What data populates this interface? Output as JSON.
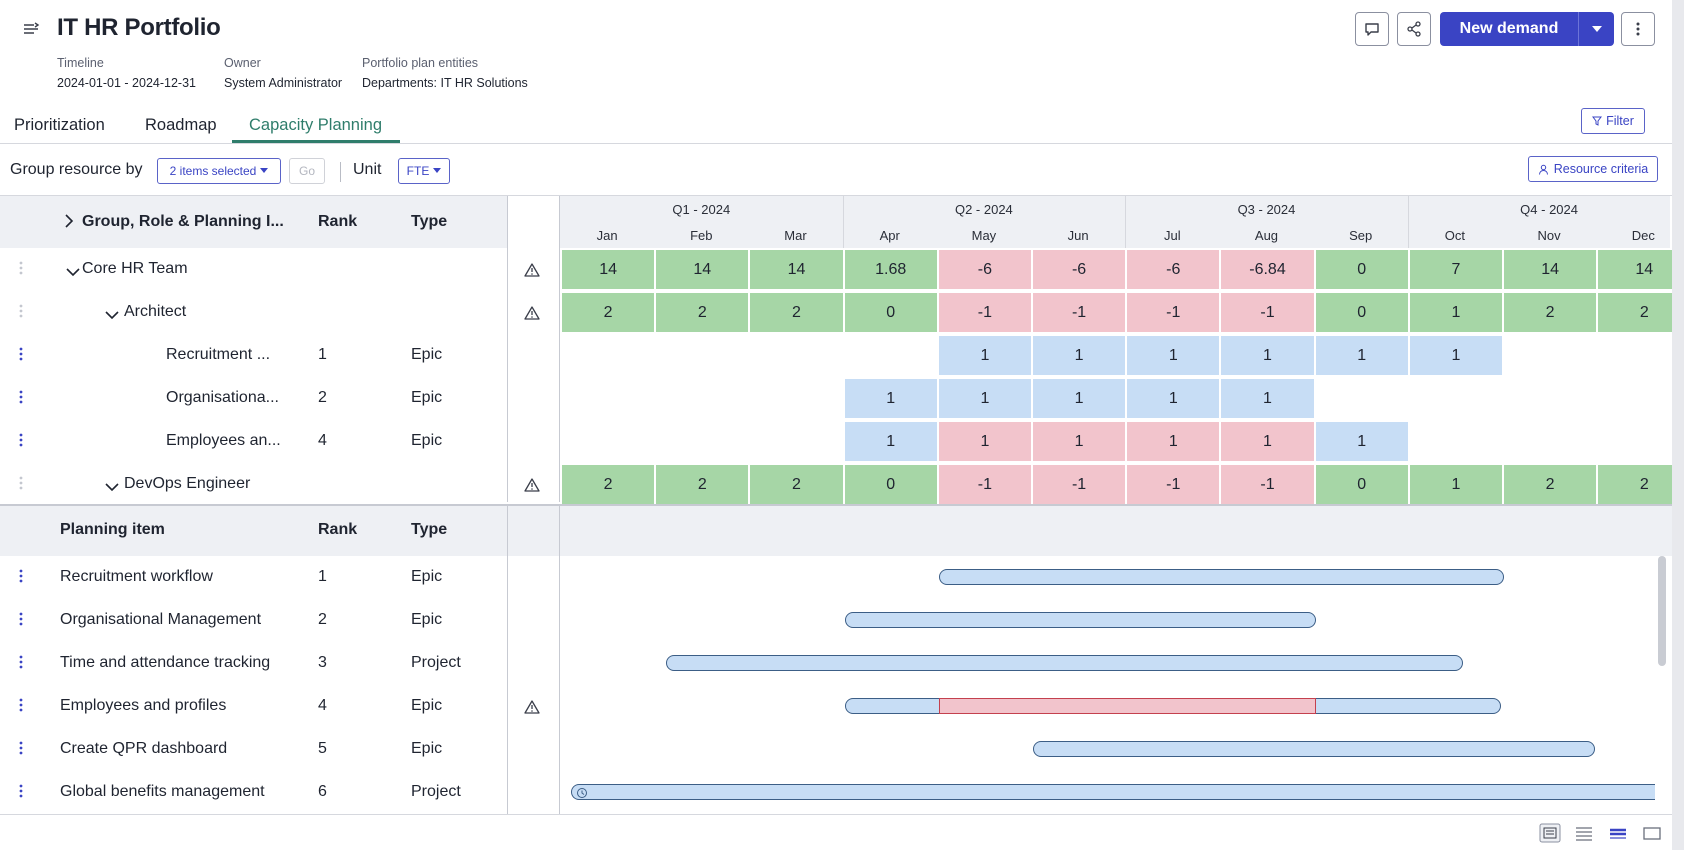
{
  "header": {
    "title": "IT HR Portfolio",
    "meta": [
      {
        "key": "Timeline",
        "value": "2024-01-01 - 2024-12-31"
      },
      {
        "key": "Owner",
        "value": "System Administrator"
      },
      {
        "key": "Portfolio plan entities",
        "value": "Departments: IT HR Solutions"
      }
    ],
    "new_demand_label": "New demand"
  },
  "tabs": [
    {
      "label": "Prioritization",
      "active": false
    },
    {
      "label": "Roadmap",
      "active": false
    },
    {
      "label": "Capacity Planning",
      "active": true
    }
  ],
  "filter_label": "Filter",
  "toolbar": {
    "group_label": "Group resource by",
    "group_value": "2 items selected",
    "go_label": "Go",
    "unit_label": "Unit",
    "unit_value": "FTE",
    "resource_criteria_label": "Resource criteria"
  },
  "capacity_grid": {
    "headers": {
      "group": "Group, Role & Planning I...",
      "rank": "Rank",
      "type": "Type"
    },
    "quarters": [
      "Q1 - 2024",
      "Q2 - 2024",
      "Q3 - 2024",
      "Q4 - 2024"
    ],
    "months": [
      "Jan",
      "Feb",
      "Mar",
      "Apr",
      "May",
      "Jun",
      "Jul",
      "Aug",
      "Sep",
      "Oct",
      "Nov",
      "Dec"
    ],
    "rows": [
      {
        "label": "Core HR Team",
        "rank": "",
        "type": "",
        "warning": true,
        "values": [
          "14",
          "14",
          "14",
          "1.68",
          "-6",
          "-6",
          "-6",
          "-6.84",
          "0",
          "7",
          "14",
          "14"
        ],
        "status": [
          "g",
          "g",
          "g",
          "g",
          "r",
          "r",
          "r",
          "r",
          "g",
          "g",
          "g",
          "g"
        ]
      },
      {
        "label": "Architect",
        "rank": "",
        "type": "",
        "warning": true,
        "values": [
          "2",
          "2",
          "2",
          "0",
          "-1",
          "-1",
          "-1",
          "-1",
          "0",
          "1",
          "2",
          "2"
        ],
        "status": [
          "g",
          "g",
          "g",
          "g",
          "r",
          "r",
          "r",
          "r",
          "g",
          "g",
          "g",
          "g"
        ]
      },
      {
        "label": "Recruitment ...",
        "rank": "1",
        "type": "Epic",
        "warning": false,
        "values": [
          "",
          "",
          "",
          "",
          "1",
          "1",
          "1",
          "1",
          "1",
          "1",
          "",
          ""
        ],
        "status": [
          "",
          "",
          "",
          "",
          "b",
          "b",
          "b",
          "b",
          "b",
          "b",
          "",
          ""
        ]
      },
      {
        "label": "Organisationa...",
        "rank": "2",
        "type": "Epic",
        "warning": false,
        "values": [
          "",
          "",
          "",
          "1",
          "1",
          "1",
          "1",
          "1",
          "",
          "",
          "",
          ""
        ],
        "status": [
          "",
          "",
          "",
          "b",
          "b",
          "b",
          "b",
          "b",
          "",
          "",
          "",
          ""
        ]
      },
      {
        "label": "Employees an...",
        "rank": "4",
        "type": "Epic",
        "warning": false,
        "values": [
          "",
          "",
          "",
          "1",
          "1",
          "1",
          "1",
          "1",
          "1",
          "",
          "",
          ""
        ],
        "status": [
          "",
          "",
          "",
          "b",
          "r",
          "r",
          "r",
          "r",
          "b",
          "",
          "",
          ""
        ]
      },
      {
        "label": "DevOps Engineer",
        "rank": "",
        "type": "",
        "warning": true,
        "values": [
          "2",
          "2",
          "2",
          "0",
          "-1",
          "-1",
          "-1",
          "-1",
          "0",
          "1",
          "2",
          "2"
        ],
        "status": [
          "g",
          "g",
          "g",
          "g",
          "r",
          "r",
          "r",
          "r",
          "g",
          "g",
          "g",
          "g"
        ]
      }
    ]
  },
  "planning_items": {
    "headers": {
      "name": "Planning item",
      "rank": "Rank",
      "type": "Type"
    },
    "items": [
      {
        "name": "Recruitment workflow",
        "rank": "1",
        "type": "Epic",
        "warning": false,
        "start_month": 4.0,
        "end_month": 10.0
      },
      {
        "name": "Organisational Management",
        "rank": "2",
        "type": "Epic",
        "warning": false,
        "start_month": 3.0,
        "end_month": 8.0
      },
      {
        "name": "Time and attendance tracking",
        "rank": "3",
        "type": "Project",
        "warning": false,
        "start_month": 1.1,
        "end_month": 9.57
      },
      {
        "name": "Employees and profiles",
        "rank": "4",
        "type": "Epic",
        "warning": true,
        "start_month": 3.0,
        "end_month": 9.97,
        "conflict_start": 4.0,
        "conflict_end": 8.0
      },
      {
        "name": "Create QPR dashboard",
        "rank": "5",
        "type": "Epic",
        "warning": false,
        "start_month": 5.0,
        "end_month": 10.97
      },
      {
        "name": "Global benefits management",
        "rank": "6",
        "type": "Project",
        "warning": false,
        "start_month": 0.1,
        "end_month": 12.0
      }
    ]
  },
  "icons": [
    "menu-collapse-icon",
    "comment-icon",
    "share-icon",
    "chevron-down-icon",
    "more-vertical-icon",
    "filter-icon",
    "person-icon",
    "warning-icon",
    "drag-handle-icon",
    "view-mode-icons"
  ],
  "colors": {
    "accent": "#3a44c4",
    "active_tab": "#2f7d6b",
    "surplus": "#a6d6a6",
    "deficit": "#f2c4cc",
    "allocation": "#c7ddf5"
  }
}
